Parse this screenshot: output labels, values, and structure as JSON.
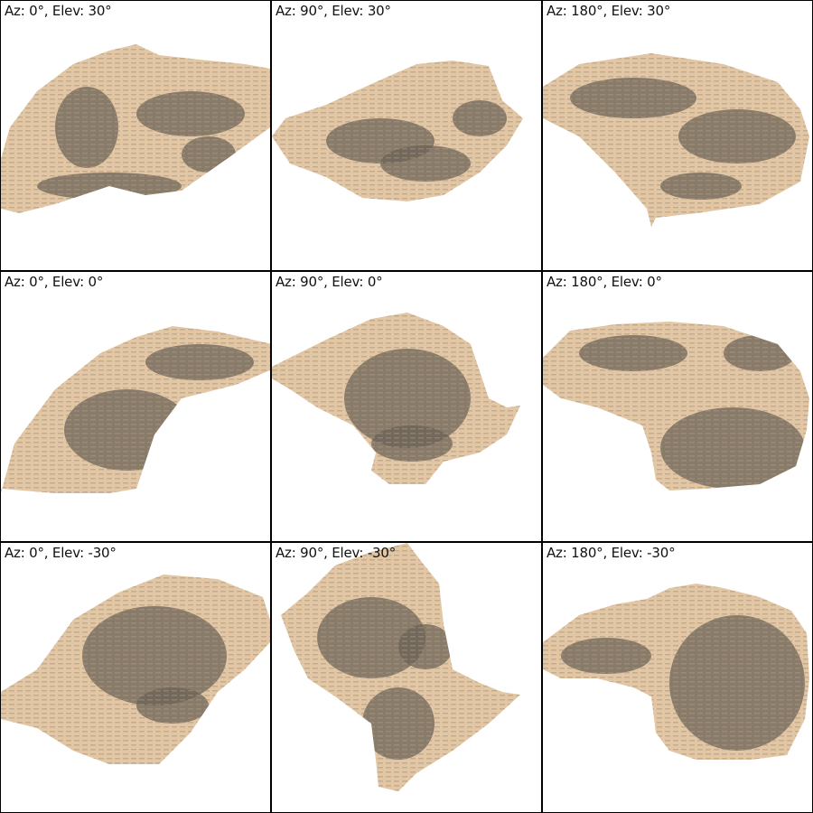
{
  "colors": {
    "surface": "#e3c7a5",
    "shadow": "#6b6157",
    "midtone": "#a89580",
    "background": "#ffffff",
    "border": "#000000"
  },
  "views": [
    {
      "label": "Az: 0°, Elev: 30°"
    },
    {
      "label": "Az: 90°, Elev: 30°"
    },
    {
      "label": "Az: 180°, Elev: 30°"
    },
    {
      "label": "Az: 0°, Elev: 0°"
    },
    {
      "label": "Az: 90°, Elev: 0°"
    },
    {
      "label": "Az: 180°, Elev: 0°"
    },
    {
      "label": "Az: 0°, Elev: -30°"
    },
    {
      "label": "Az: 90°, Elev: -30°"
    },
    {
      "label": "Az: 180°, Elev: -30°"
    }
  ]
}
